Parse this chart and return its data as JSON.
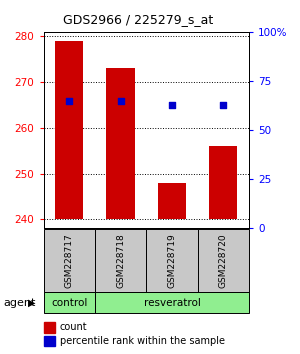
{
  "title": "GDS2966 / 225279_s_at",
  "samples": [
    "GSM228717",
    "GSM228718",
    "GSM228719",
    "GSM228720"
  ],
  "count_values": [
    279,
    273,
    248,
    256
  ],
  "percentile_values": [
    65,
    65,
    63,
    63
  ],
  "ylim_left": [
    238,
    281
  ],
  "ylim_right": [
    0,
    100
  ],
  "yticks_left": [
    240,
    250,
    260,
    270,
    280
  ],
  "yticks_right": [
    0,
    25,
    50,
    75,
    100
  ],
  "ytick_labels_right": [
    "0",
    "25",
    "50",
    "75",
    "100%"
  ],
  "bar_color": "#cc0000",
  "dot_color": "#0000cc",
  "bar_bottom": 240,
  "group_label": "agent",
  "bg_group": "#90ee90",
  "bg_xticklabel": "#c8c8c8",
  "bar_width": 0.55,
  "dot_size": 20,
  "title_fontsize": 9,
  "tick_fontsize": 7.5,
  "sample_fontsize": 6.5,
  "group_fontsize": 7.5,
  "legend_fontsize": 7
}
